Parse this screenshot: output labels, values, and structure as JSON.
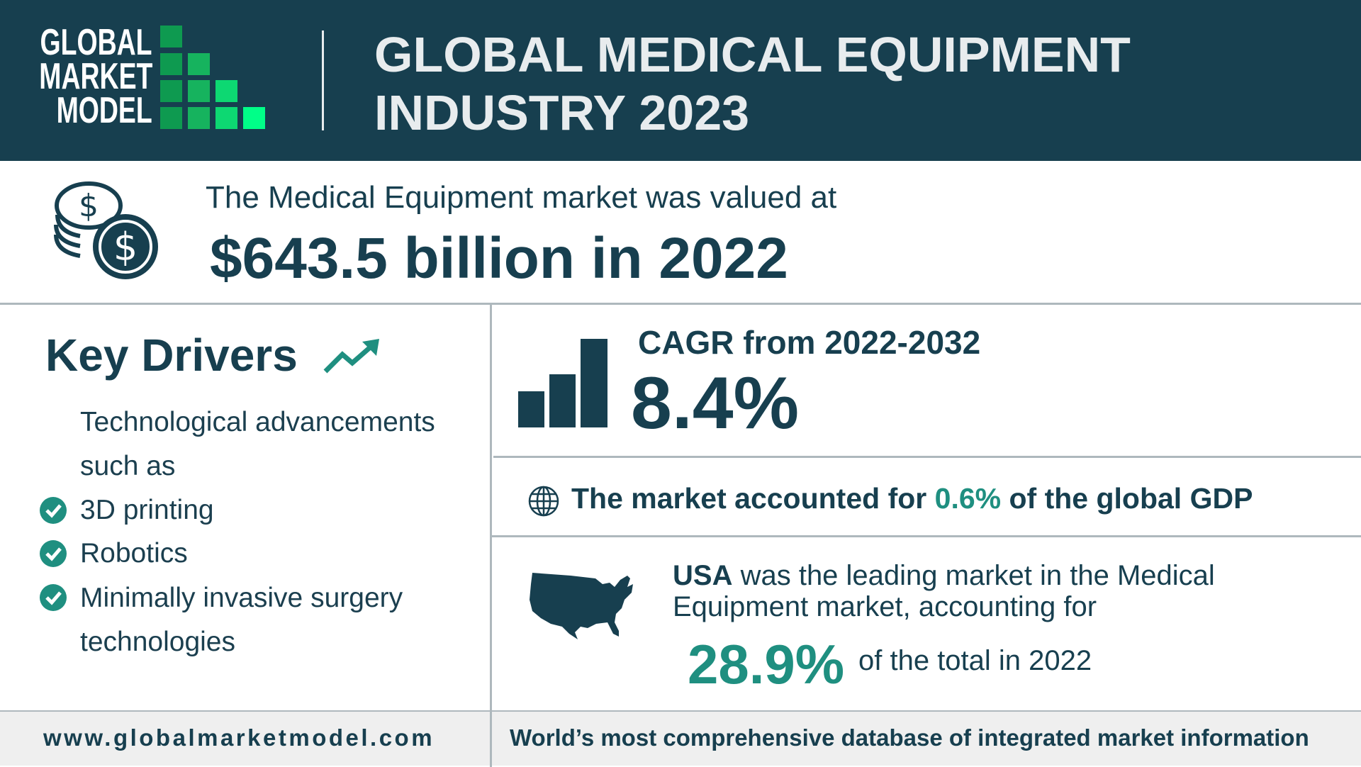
{
  "logo": {
    "lines": [
      "GLOBAL",
      "MARKET",
      "MODEL"
    ]
  },
  "header": {
    "title": "GLOBAL MEDICAL EQUIPMENT INDUSTRY 2023"
  },
  "valuation": {
    "intro": "The Medical Equipment market was valued at",
    "value": "$643.5 billion in 2022",
    "icon": "dollar-coins-icon"
  },
  "drivers": {
    "title": "Key Drivers",
    "icon": "trending-up-icon",
    "intro_lines": [
      "Technological advancements",
      "such as"
    ],
    "items": [
      "3D printing",
      "Robotics",
      "Minimally invasive surgery"
    ],
    "continuation": "technologies"
  },
  "cagr": {
    "label": "CAGR from 2022-2032",
    "value": "8.4%",
    "icon": "bar-chart-icon"
  },
  "gdp": {
    "prefix": "The market accounted for",
    "value": "0.6%",
    "suffix": "of the global GDP",
    "icon": "globe-icon"
  },
  "usa": {
    "bold": "USA",
    "line1": "was the leading market in the Medical",
    "line2": "Equipment market, accounting for",
    "value": "28.9%",
    "suffix": "of the total in 2022",
    "icon": "usa-map-icon"
  },
  "footer": {
    "url": "www.globalmarketmodel.com",
    "tagline": "World’s most comprehensive database of integrated market information"
  },
  "colors": {
    "dark": "#173f4f",
    "teal": "#1f8f80",
    "accent_green": "#00ff88"
  }
}
